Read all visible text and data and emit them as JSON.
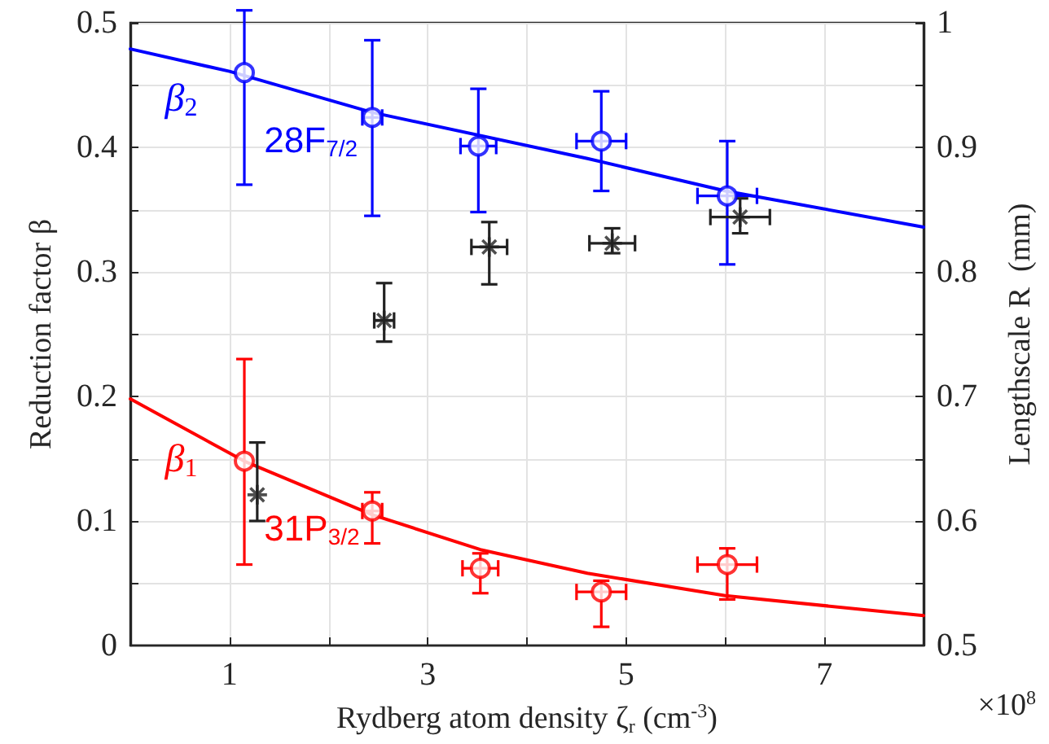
{
  "chart_data": {
    "type": "scatter",
    "xlabel": "Rydberg atom density ζ$_{r}$ (cm$^{-3}$)",
    "ylabel": "Reduction factor β",
    "y2label": "Lengthscale R  (mm)",
    "xlim": [
      0,
      8
    ],
    "xticks": [
      {
        "value": 0,
        "label": null
      },
      1,
      {
        "value": 2,
        "label": null
      },
      3,
      {
        "value": 4,
        "label": null
      },
      5,
      {
        "value": 6,
        "label": null
      },
      7,
      {
        "value": 8,
        "label": null
      }
    ],
    "ylim": [
      0,
      0.5
    ],
    "yticks": [
      0,
      {
        "value": 0.05,
        "label": null
      },
      0.1,
      {
        "value": 0.15,
        "label": null
      },
      0.2,
      {
        "value": 0.25,
        "label": null
      },
      0.3,
      {
        "value": 0.35,
        "label": null
      },
      0.4,
      {
        "value": 0.45,
        "label": null
      },
      0.5
    ],
    "y2lim": [
      0.5,
      1
    ],
    "y2ticks": [
      0.5,
      {
        "value": 0.55,
        "label": null
      },
      0.6,
      {
        "value": 0.65,
        "label": null
      },
      0.7,
      {
        "value": 0.75,
        "label": null
      },
      0.8,
      {
        "value": 0.85,
        "label": null
      },
      0.9,
      {
        "value": 0.95,
        "label": null
      },
      1
    ],
    "grid": true,
    "series": [
      {
        "type": "line",
        "color": "#0000ff",
        "marker": "none",
        "x": [
          0,
          1,
          2.44,
          4.61,
          6,
          8
        ],
        "values": [
          0.479,
          0.461,
          0.428,
          0.391,
          0.365,
          0.336
        ]
      },
      {
        "type": "line",
        "color": "#ff0000",
        "marker": "none",
        "x": [
          0,
          1.15,
          2.44,
          3.53,
          4.61,
          6,
          8
        ],
        "values": [
          0.198,
          0.148,
          0.105,
          0.077,
          0.058,
          0.04,
          0.024
        ]
      },
      {
        "color": "#0000ff",
        "marker": "circle",
        "x": [
          1.15,
          2.44,
          3.51,
          4.75,
          6.02
        ],
        "values": [
          0.46,
          0.424,
          0.401,
          0.405,
          0.361
        ],
        "errors": [
          [
            0.37,
            0.51
          ],
          [
            0.345,
            0.486
          ],
          [
            0.348,
            0.447
          ],
          [
            0.365,
            0.445
          ],
          [
            0.306,
            0.405
          ]
        ],
        "xerrors": [
          null,
          0.1,
          0.18,
          0.25,
          0.3
        ]
      },
      {
        "color": "#ff0000",
        "marker": "circle",
        "x": [
          1.15,
          2.44,
          3.53,
          4.75,
          6.02
        ],
        "values": [
          0.148,
          0.108,
          0.062,
          0.043,
          0.065
        ],
        "errors": [
          [
            0.065,
            0.23
          ],
          [
            0.082,
            0.123
          ],
          [
            0.042,
            0.074
          ],
          [
            0.015,
            0.052
          ],
          [
            0.037,
            0.078
          ]
        ],
        "xerrors": [
          null,
          0.1,
          0.18,
          0.25,
          0.3
        ]
      },
      {
        "axis": "y2",
        "color": "#222222",
        "marker": "cross",
        "x": [
          1.28,
          2.56,
          3.62,
          4.86,
          6.15
        ],
        "values": [
          0.621,
          0.761,
          0.82,
          0.823,
          0.844
        ],
        "errors": [
          [
            0.6,
            0.663
          ],
          [
            0.744,
            0.791
          ],
          [
            0.79,
            0.84
          ],
          [
            0.815,
            0.835
          ],
          [
            0.831,
            0.859
          ]
        ],
        "xerrors": [
          null,
          0.1,
          0.18,
          0.23,
          0.3
        ]
      }
    ],
    "annotations": [
      "β$_{2}$",
      "28F$_{7/2}$",
      "β$_{1}$",
      "31P$_{3/2}$",
      "×10$^{8}$"
    ]
  }
}
